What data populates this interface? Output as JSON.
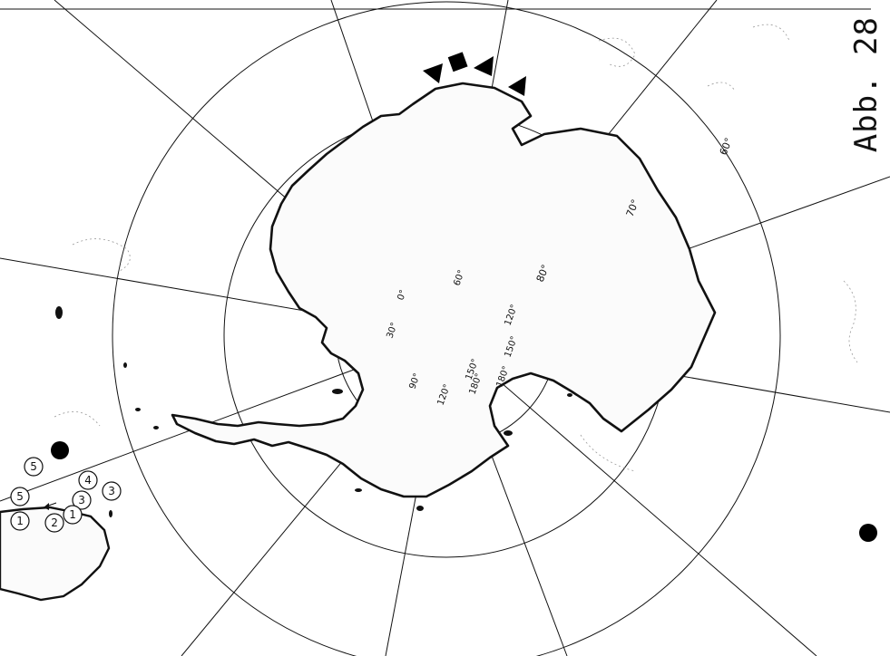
{
  "figure": {
    "label": "Abb. 28"
  },
  "latitude_labels": [
    "60°",
    "70°",
    "80°"
  ],
  "longitude_labels": [
    "0°",
    "30°",
    "60°",
    "90°",
    "120°",
    "150°",
    "180°",
    "120°",
    "150°",
    "180°"
  ],
  "station_numbers": [
    "5",
    "5",
    "4",
    "3",
    "3",
    "1",
    "2",
    "1"
  ],
  "symbols": {
    "triangle_count": 3,
    "square_count": 1,
    "dot_count": 2,
    "color": "#000000"
  }
}
